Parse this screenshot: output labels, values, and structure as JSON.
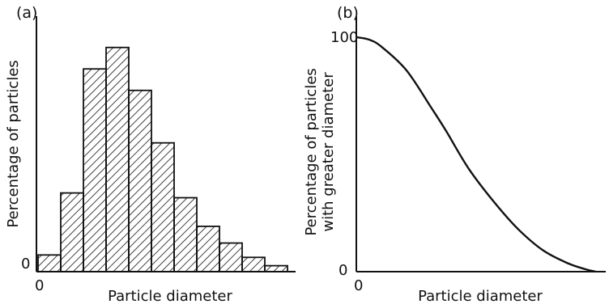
{
  "chart_data": [
    {
      "type": "bar",
      "panel_label": "(a)",
      "xlabel": "Particle diameter",
      "ylabel": "Percentage of particles",
      "x_ticks": [
        "0"
      ],
      "y_ticks": [
        "0"
      ],
      "values": [
        0.07,
        0.33,
        0.85,
        0.94,
        0.76,
        0.54,
        0.31,
        0.19,
        0.12,
        0.06,
        0.025
      ],
      "ylim": [
        0,
        1
      ],
      "fill": "hatched",
      "bar_color": "#111111"
    },
    {
      "type": "line",
      "panel_label": "(b)",
      "xlabel": "Particle diameter",
      "ylabel": [
        "Percentage of particles",
        "with greater diameter"
      ],
      "x_ticks": [
        "0"
      ],
      "y_ticks": [
        "0",
        "100"
      ],
      "ylim": [
        0,
        100
      ],
      "xlim": [
        0,
        1
      ],
      "x": [
        0,
        0.05,
        0.1,
        0.2,
        0.3,
        0.36,
        0.45,
        0.55,
        0.65,
        0.75,
        0.85,
        0.92,
        0.96
      ],
      "y": [
        100,
        99,
        96,
        86,
        70,
        60,
        44,
        30,
        18,
        9,
        3.5,
        1,
        0
      ],
      "line_color": "#111111"
    }
  ]
}
